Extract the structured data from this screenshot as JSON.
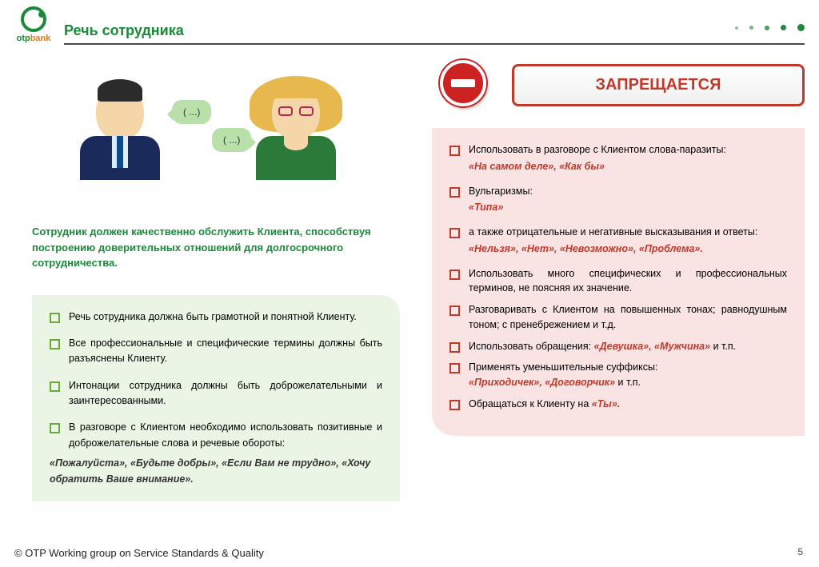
{
  "brand": {
    "name_green": "otp",
    "name_orange": "bank"
  },
  "page_title": "Речь сотрудника",
  "bubbles": {
    "b1": "( ...)",
    "b2": "( ...)"
  },
  "intro": "Сотрудник должен качественно обслужить Клиента, способствуя построению доверительных отношений для долгосрочного сотрудничества.",
  "green_items": [
    "Речь сотрудника должна быть грамотной и понятной Клиенту.",
    "Все профессиональные и специфические термины должны быть разъяснены Клиенту.",
    "Интонации сотрудника должны быть доброжелательными и заинтересованными.",
    "В разговоре с Клиентом необходимо использовать позитивные и доброжелательные слова и речевые обороты:"
  ],
  "green_quote": "«Пожалуйста», «Будьте добры», «Если Вам не трудно», «Хочу обратить Ваше внимание».",
  "forbidden_label": "ЗАПРЕЩАЕТСЯ",
  "red_items": [
    {
      "text": "Использовать в разговоре с Клиентом слова-паразиты:",
      "em": "«На самом деле», «Как бы»"
    },
    {
      "text": "Вульгаризмы:",
      "em": "«Типа»"
    },
    {
      "text": "а также отрицательные и негативные высказывания и ответы:",
      "em": "«Нельзя», «Нет», «Невозможно», «Проблема»."
    },
    {
      "text": "Использовать много специфических и профессиональных терминов, не поясняя их значение."
    },
    {
      "text": "Разговаривать с Клиентом на повышенных тонах; равнодушным тоном; с пренебрежением и т.д."
    },
    {
      "pre": "Использовать обращения: ",
      "inline": "«Девушка», «Мужчина»",
      "post": " и т.п."
    },
    {
      "text": "Применять уменьшительные суффиксы:",
      "em_inline": "«Приходичек», «Договорчик»",
      "em_post": " и т.п."
    },
    {
      "pre": "Обращаться к Клиенту на ",
      "inline": "«Ты».",
      "post": ""
    }
  ],
  "footer": "© OTP Working group on Service Standards & Quality",
  "page_number": "5",
  "colors": {
    "brand_green": "#1a8a3a",
    "brand_orange": "#e67817",
    "red": "#c0392b",
    "green_box_bg": "#eaf5e5",
    "red_box_bg": "#f9e3e3"
  }
}
